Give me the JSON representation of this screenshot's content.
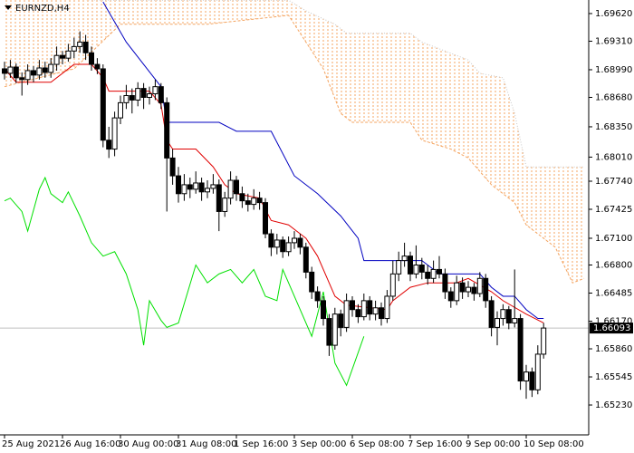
{
  "chart_data": {
    "type": "candlestick",
    "title": "EURNZD,H4",
    "categories": [
      "25 Aug 2021",
      null,
      null,
      null,
      null,
      null,
      null,
      null,
      null,
      null,
      "26 Aug 16:00",
      null,
      null,
      null,
      null,
      null,
      null,
      null,
      null,
      null,
      "30 Aug 00:00",
      null,
      null,
      null,
      null,
      null,
      null,
      null,
      null,
      null,
      "31 Aug 08:00",
      null,
      null,
      null,
      null,
      null,
      null,
      null,
      null,
      null,
      "1 Sep 16:00",
      null,
      null,
      null,
      null,
      null,
      null,
      null,
      null,
      null,
      "3 Sep 00:00",
      null,
      null,
      null,
      null,
      null,
      null,
      null,
      null,
      null,
      "6 Sep 08:00",
      null,
      null,
      null,
      null,
      null,
      null,
      null,
      null,
      null,
      "7 Sep 16:00",
      null,
      null,
      null,
      null,
      null,
      null,
      null,
      null,
      null,
      "9 Sep 00:00",
      null,
      null,
      null,
      null,
      null,
      null,
      null,
      null,
      null,
      "10 Sep 08:00",
      null,
      null,
      null,
      null,
      null,
      null,
      null,
      null,
      null,
      null
    ],
    "ylim": [
      1.64895,
      1.69772
    ],
    "yticks": [
      {
        "value": 1.6962,
        "label": "1.69620"
      },
      {
        "value": 1.6931,
        "label": "1.69310"
      },
      {
        "value": 1.6899,
        "label": "1.68990"
      },
      {
        "value": 1.6868,
        "label": "1.68680"
      },
      {
        "value": 1.6835,
        "label": "1.68350"
      },
      {
        "value": 1.6801,
        "label": "1.68010"
      },
      {
        "value": 1.6774,
        "label": "1.67740"
      },
      1.67425,
      {
        "value": 1.671,
        "label": "1.67100"
      },
      {
        "value": 1.668,
        "label": "1.66800"
      },
      1.66485,
      {
        "value": 1.6617,
        "label": "1.66170"
      },
      {
        "value": 1.6586,
        "label": "1.65860"
      },
      1.65545,
      {
        "value": 1.6523,
        "label": "1.65230"
      }
    ],
    "last_price": 1.66093,
    "candles": {
      "up_color": "#ffffff",
      "down_color": "#000000",
      "values": [
        [
          1.69,
          1.6908,
          1.6888,
          1.6895
        ],
        [
          1.6895,
          1.691,
          1.689,
          1.6902
        ],
        [
          1.6902,
          1.6906,
          1.6884,
          1.689
        ],
        [
          1.689,
          1.6896,
          1.687,
          1.6888
        ],
        [
          1.6888,
          1.6905,
          1.6882,
          1.6898
        ],
        [
          1.6898,
          1.6903,
          1.6885,
          1.6893
        ],
        [
          1.6893,
          1.691,
          1.6888,
          1.6901
        ],
        [
          1.6901,
          1.6908,
          1.689,
          1.6896
        ],
        [
          1.6896,
          1.6912,
          1.689,
          1.6905
        ],
        [
          1.6905,
          1.6925,
          1.6898,
          1.6915
        ],
        [
          1.6915,
          1.692,
          1.6905,
          1.6912
        ],
        [
          1.6912,
          1.6928,
          1.6908,
          1.692
        ],
        [
          1.692,
          1.6935,
          1.6912,
          1.6925
        ],
        [
          1.6925,
          1.6942,
          1.6918,
          1.693
        ],
        [
          1.693,
          1.6938,
          1.691,
          1.6918
        ],
        [
          1.6918,
          1.6925,
          1.6898,
          1.6905
        ],
        [
          1.6905,
          1.6912,
          1.6894,
          1.69
        ],
        [
          1.69,
          1.6905,
          1.6812,
          1.682
        ],
        [
          1.682,
          1.6835,
          1.68,
          1.681
        ],
        [
          1.681,
          1.6852,
          1.6802,
          1.6845
        ],
        [
          1.6845,
          1.687,
          1.6838,
          1.6862
        ],
        [
          1.6862,
          1.6882,
          1.6855,
          1.687
        ],
        [
          1.687,
          1.6878,
          1.685,
          1.6865
        ],
        [
          1.6865,
          1.6885,
          1.6858,
          1.6878
        ],
        [
          1.6878,
          1.6884,
          1.6855,
          1.6868
        ],
        [
          1.6868,
          1.688,
          1.686,
          1.6872
        ],
        [
          1.6872,
          1.6888,
          1.6865,
          1.688
        ],
        [
          1.688,
          1.6884,
          1.6855,
          1.6862
        ],
        [
          1.6862,
          1.6868,
          1.674,
          1.68
        ],
        [
          1.68,
          1.681,
          1.677,
          1.678
        ],
        [
          1.678,
          1.679,
          1.675,
          1.676
        ],
        [
          1.676,
          1.6782,
          1.6752,
          1.677
        ],
        [
          1.677,
          1.6778,
          1.6755,
          1.6765
        ],
        [
          1.6765,
          1.6785,
          1.676,
          1.6772
        ],
        [
          1.6772,
          1.6778,
          1.6752,
          1.6762
        ],
        [
          1.6762,
          1.6775,
          1.6755,
          1.6766
        ],
        [
          1.6766,
          1.6782,
          1.676,
          1.677
        ],
        [
          1.677,
          1.6776,
          1.6718,
          1.674
        ],
        [
          1.674,
          1.6762,
          1.6734,
          1.6755
        ],
        [
          1.6755,
          1.6785,
          1.6748,
          1.6775
        ],
        [
          1.6775,
          1.678,
          1.6752,
          1.676
        ],
        [
          1.676,
          1.6768,
          1.6744,
          1.6752
        ],
        [
          1.6752,
          1.676,
          1.674,
          1.6748
        ],
        [
          1.6748,
          1.6765,
          1.6742,
          1.6755
        ],
        [
          1.6755,
          1.6762,
          1.6742,
          1.675
        ],
        [
          1.675,
          1.6755,
          1.671,
          1.6715
        ],
        [
          1.6715,
          1.672,
          1.669,
          1.67
        ],
        [
          1.67,
          1.6715,
          1.6692,
          1.6708
        ],
        [
          1.6708,
          1.6712,
          1.6688,
          1.6695
        ],
        [
          1.6695,
          1.6712,
          1.669,
          1.6705
        ],
        [
          1.6705,
          1.6718,
          1.6698,
          1.671
        ],
        [
          1.671,
          1.6715,
          1.6692,
          1.67
        ],
        [
          1.67,
          1.6705,
          1.6665,
          1.6672
        ],
        [
          1.6672,
          1.6678,
          1.6642,
          1.665
        ],
        [
          1.665,
          1.6656,
          1.6632,
          1.664
        ],
        [
          1.664,
          1.6645,
          1.6612,
          1.662
        ],
        [
          1.662,
          1.6625,
          1.6578,
          1.659
        ],
        [
          1.659,
          1.6632,
          1.6585,
          1.6625
        ],
        [
          1.6625,
          1.663,
          1.66,
          1.661
        ],
        [
          1.661,
          1.6648,
          1.6605,
          1.664
        ],
        [
          1.664,
          1.6645,
          1.6622,
          1.663
        ],
        [
          1.663,
          1.6636,
          1.6615,
          1.6622
        ],
        [
          1.6622,
          1.6648,
          1.6618,
          1.664
        ],
        [
          1.664,
          1.6645,
          1.6618,
          1.6625
        ],
        [
          1.6625,
          1.664,
          1.6618,
          1.6632
        ],
        [
          1.6632,
          1.6638,
          1.6612,
          1.662
        ],
        [
          1.662,
          1.6652,
          1.6615,
          1.6645
        ],
        [
          1.6645,
          1.6685,
          1.664,
          1.667
        ],
        [
          1.667,
          1.6695,
          1.6662,
          1.6685
        ],
        [
          1.6685,
          1.6705,
          1.6678,
          1.669
        ],
        [
          1.669,
          1.6695,
          1.6662,
          1.667
        ],
        [
          1.667,
          1.6702,
          1.6665,
          1.668
        ],
        [
          1.668,
          1.6688,
          1.6664,
          1.6672
        ],
        [
          1.6672,
          1.668,
          1.6658,
          1.6665
        ],
        [
          1.6665,
          1.6685,
          1.666,
          1.6675
        ],
        [
          1.6675,
          1.669,
          1.6665,
          1.667
        ],
        [
          1.667,
          1.6676,
          1.6642,
          1.665
        ],
        [
          1.665,
          1.6655,
          1.6632,
          1.664
        ],
        [
          1.664,
          1.6668,
          1.6635,
          1.666
        ],
        [
          1.666,
          1.6666,
          1.6642,
          1.665
        ],
        [
          1.665,
          1.6662,
          1.6644,
          1.6655
        ],
        [
          1.6655,
          1.666,
          1.664,
          1.6648
        ],
        [
          1.6648,
          1.6672,
          1.6644,
          1.6665
        ],
        [
          1.6665,
          1.667,
          1.6632,
          1.664
        ],
        [
          1.664,
          1.6645,
          1.66,
          1.661
        ],
        [
          1.661,
          1.6628,
          1.659,
          1.662
        ],
        [
          1.662,
          1.6636,
          1.6612,
          1.663
        ],
        [
          1.663,
          1.6634,
          1.6608,
          1.6615
        ],
        [
          1.6615,
          1.6675,
          1.661,
          1.662
        ],
        [
          1.662,
          1.6625,
          1.654,
          1.655
        ],
        [
          1.655,
          1.6568,
          1.653,
          1.656
        ],
        [
          1.656,
          1.6565,
          1.6532,
          1.654
        ],
        [
          1.654,
          1.659,
          1.6535,
          1.658
        ],
        [
          1.658,
          1.6615,
          1.6575,
          1.66093
        ],
        null,
        null,
        null,
        null,
        null,
        null,
        null
      ]
    },
    "cloud": {
      "color": "#f4a460",
      "upper": {
        "color": "#c8c8c8",
        "x": [
          0,
          17,
          30,
          49,
          52,
          57,
          59,
          70,
          72,
          80,
          82,
          86,
          88,
          90,
          100
        ],
        "values": [
          1.698,
          1.6977,
          1.6977,
          1.6977,
          1.6965,
          1.695,
          1.694,
          1.694,
          1.693,
          1.691,
          1.6895,
          1.689,
          1.685,
          1.679,
          1.679
        ]
      },
      "lower": {
        "color": "#f4a460",
        "x": [
          0,
          12,
          20,
          35,
          49,
          51,
          55,
          58,
          60,
          70,
          72,
          77,
          80,
          84,
          88,
          90,
          95,
          98,
          100
        ],
        "values": [
          1.688,
          1.69,
          1.695,
          1.695,
          1.696,
          1.694,
          1.69,
          1.685,
          1.684,
          1.684,
          1.682,
          1.681,
          1.68,
          1.677,
          1.675,
          1.6725,
          1.67,
          1.666,
          1.6665
        ]
      }
    },
    "lines": [
      {
        "color": "#e00000",
        "x": [
          0,
          2,
          8,
          12,
          15,
          17,
          18,
          25,
          27,
          28,
          29,
          33,
          36,
          38,
          40,
          44,
          46,
          49,
          52,
          54,
          56,
          57,
          59,
          66,
          67,
          70,
          73,
          78,
          80,
          84,
          86,
          90,
          93
        ],
        "values": [
          1.69,
          1.6885,
          1.6885,
          1.6905,
          1.6905,
          1.689,
          1.6875,
          1.6875,
          1.686,
          1.682,
          1.681,
          1.681,
          1.679,
          1.677,
          1.676,
          1.6755,
          1.673,
          1.6725,
          1.671,
          1.669,
          1.666,
          1.6645,
          1.6635,
          1.663,
          1.664,
          1.6655,
          1.666,
          1.666,
          1.6665,
          1.665,
          1.664,
          1.6625,
          1.6615
        ]
      },
      {
        "color": "#0000c0",
        "x": [
          17,
          21,
          27,
          28,
          37,
          40,
          46,
          50,
          54,
          58,
          61,
          62,
          72,
          75,
          82,
          84,
          86,
          88,
          90,
          92,
          93
        ],
        "values": [
          1.6975,
          1.693,
          1.688,
          1.684,
          1.684,
          1.683,
          1.683,
          1.678,
          1.676,
          1.6735,
          1.671,
          1.6685,
          1.6685,
          1.667,
          1.667,
          1.6655,
          1.6645,
          1.6645,
          1.663,
          1.662,
          1.662
        ]
      },
      {
        "color": "#00e000",
        "x": [
          0,
          1,
          3,
          4,
          6,
          7,
          8,
          10,
          11,
          13,
          15,
          17,
          19,
          21,
          23,
          24,
          25,
          27,
          28,
          30,
          33,
          35,
          37,
          39,
          41,
          43,
          45,
          47,
          48,
          51,
          53,
          55,
          56,
          57,
          59,
          62
        ],
        "values": [
          1.6752,
          1.6755,
          1.674,
          1.6718,
          1.6765,
          1.6778,
          1.676,
          1.675,
          1.6762,
          1.6735,
          1.6705,
          1.669,
          1.6695,
          1.667,
          1.663,
          1.659,
          1.664,
          1.6618,
          1.661,
          1.6615,
          1.668,
          1.666,
          1.667,
          1.6675,
          1.666,
          1.6675,
          1.6645,
          1.664,
          1.6675,
          1.663,
          1.66,
          1.665,
          1.661,
          1.657,
          1.6545,
          1.66
        ]
      }
    ]
  }
}
